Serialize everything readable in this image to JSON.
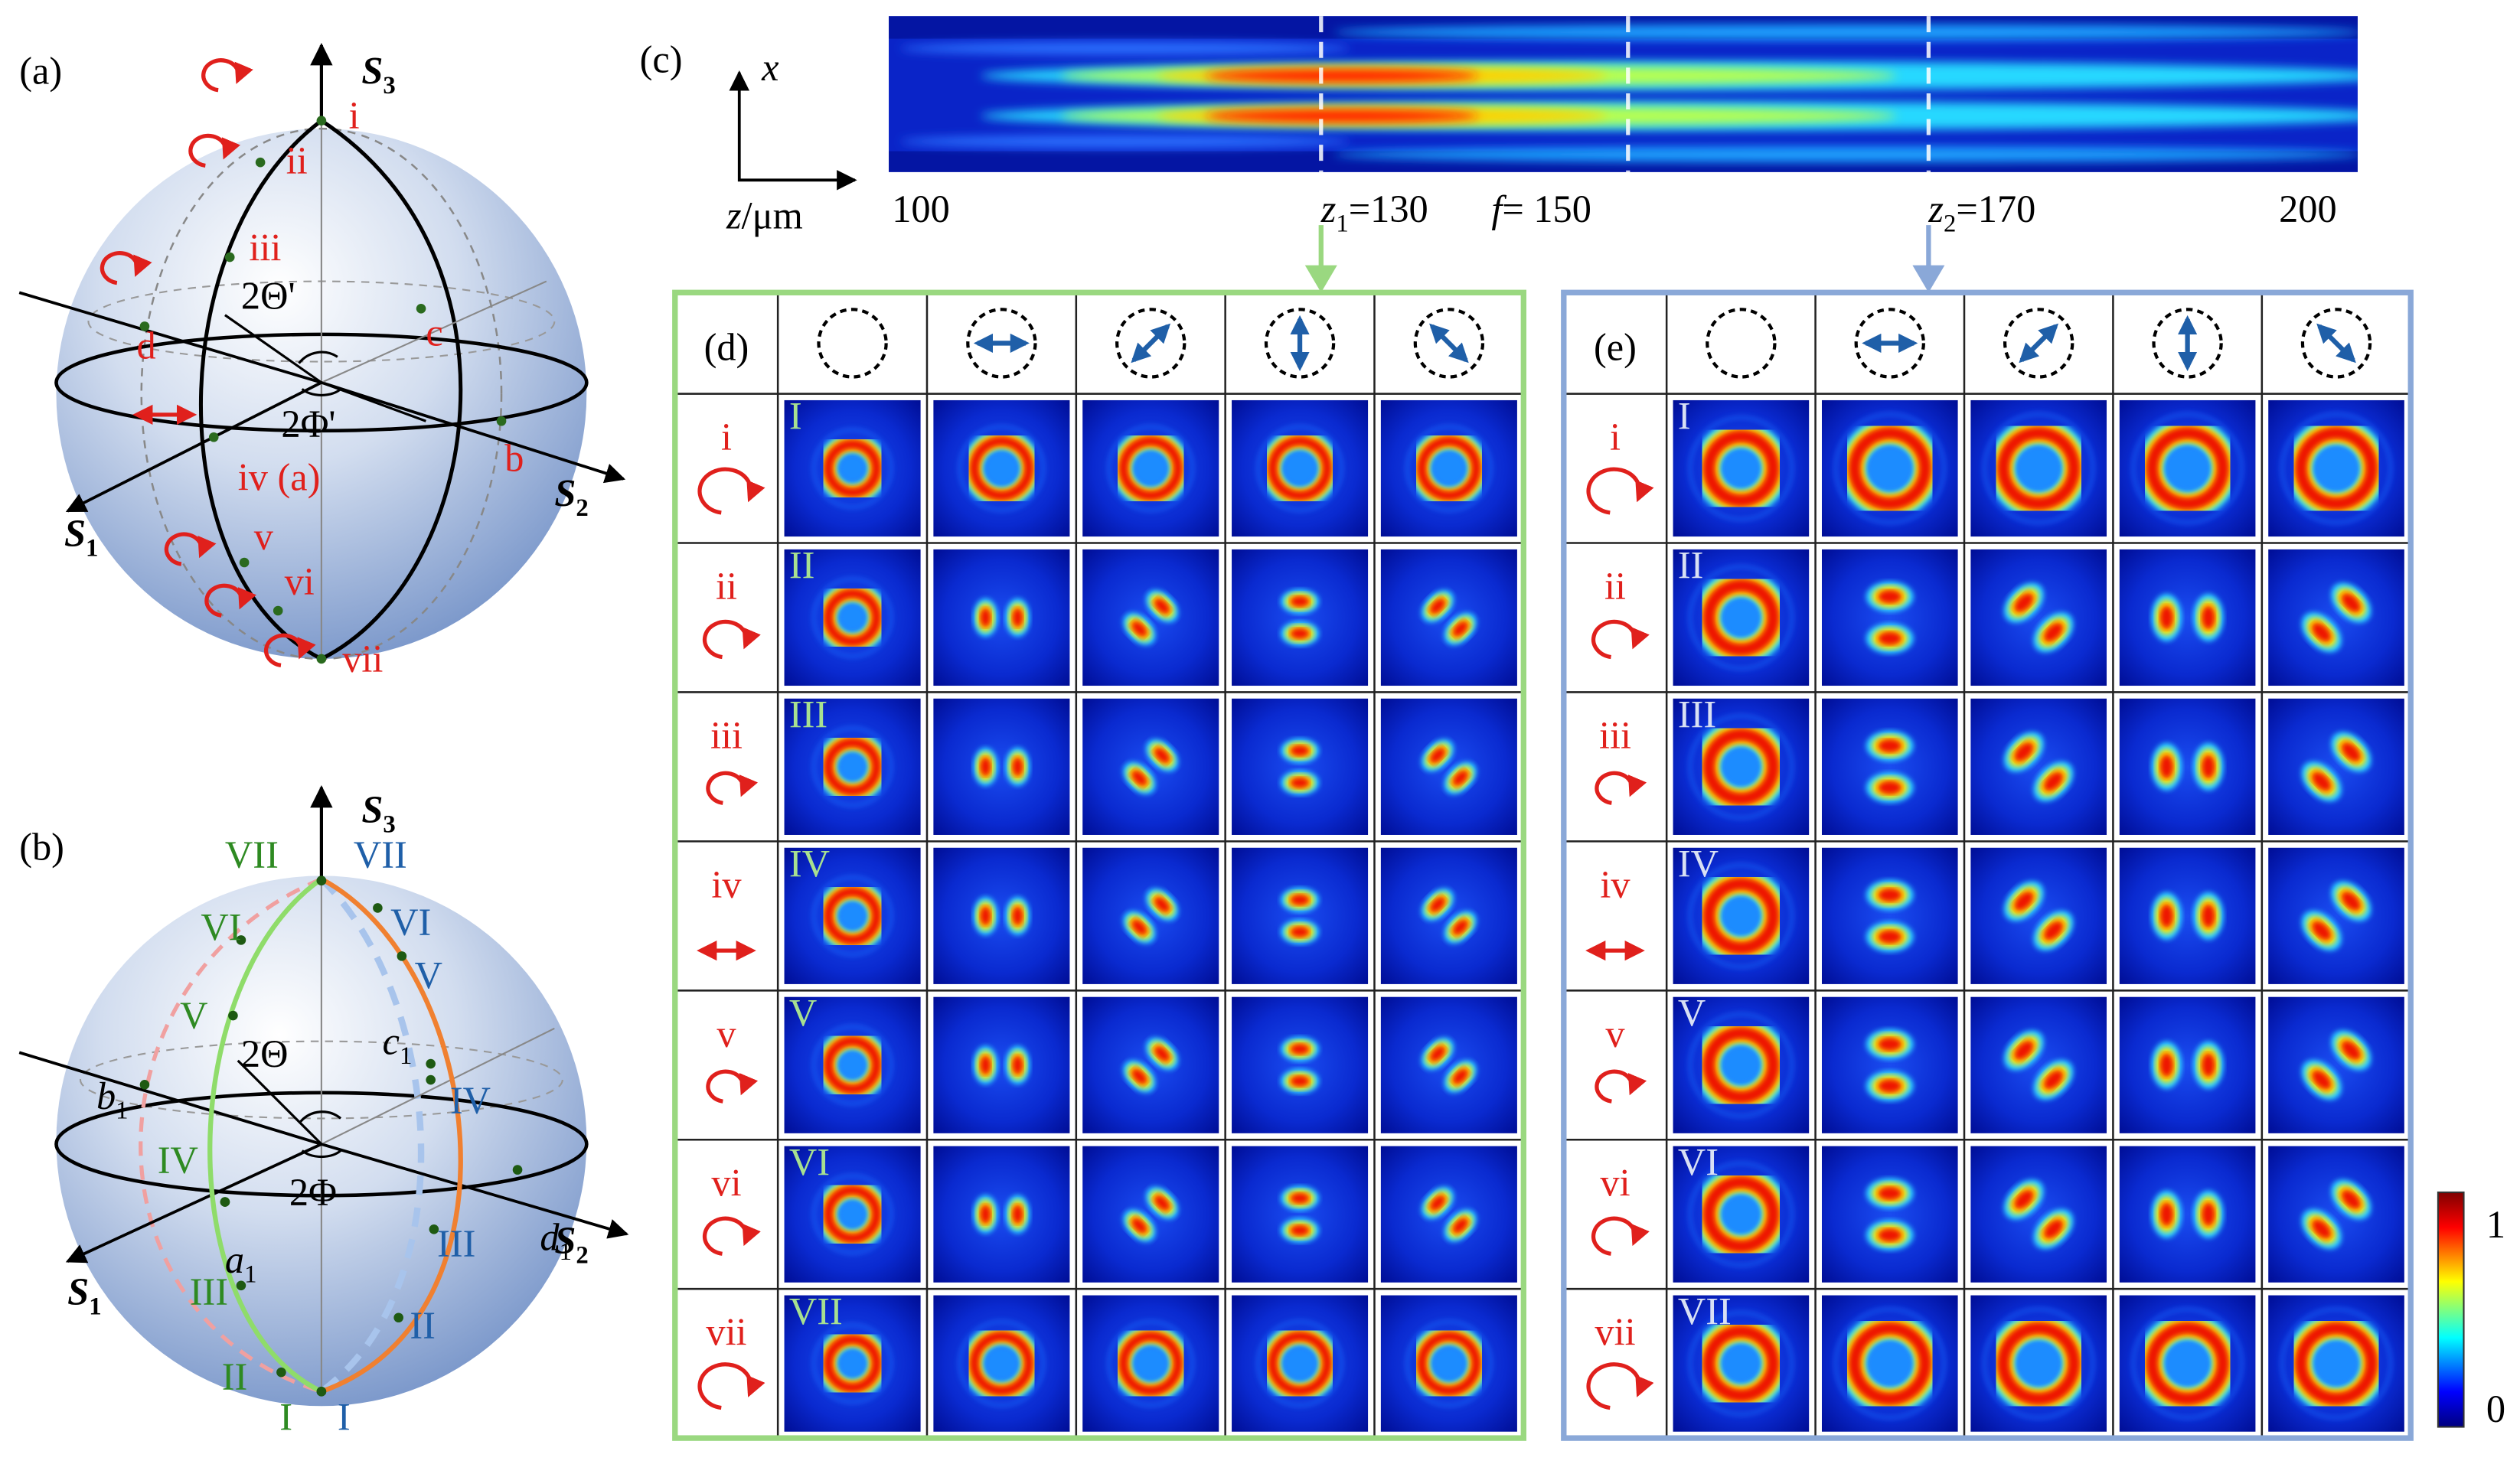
{
  "panel_a": {
    "label": "(a)",
    "axis_labels": [
      {
        "symbol": "S",
        "sub": "3"
      },
      {
        "symbol": "S",
        "sub": "2"
      },
      {
        "symbol": "S",
        "sub": "1"
      }
    ],
    "points": [
      "i",
      "ii",
      "iii",
      "d",
      "c",
      "iv (a)",
      "b",
      "v",
      "vi",
      "vii"
    ],
    "angles": [
      "2Θ'",
      "2Φ'"
    ]
  },
  "panel_b": {
    "label": "(b)",
    "axis_labels": [
      {
        "symbol": "S",
        "sub": "3"
      },
      {
        "symbol": "S",
        "sub": "2"
      },
      {
        "symbol": "S",
        "sub": "1"
      }
    ],
    "green_points": [
      "VII",
      "VI",
      "V",
      "IV",
      "III",
      "II",
      "I"
    ],
    "blue_points": [
      "VII",
      "VI",
      "V",
      "IV",
      "III",
      "II",
      "I"
    ],
    "points": [
      {
        "symbol": "b",
        "sub": "1"
      },
      {
        "symbol": "c",
        "sub": "1"
      },
      {
        "symbol": "a",
        "sub": "1"
      },
      {
        "symbol": "d",
        "sub": "1"
      }
    ],
    "angles": [
      "2Θ",
      "2Φ"
    ]
  },
  "panel_c": {
    "label": "(c)",
    "x_axis": "x",
    "z_axis": {
      "symbol": "z",
      "text": "/μm"
    },
    "ticks": [
      {
        "text": "100"
      },
      {
        "symbol": "z",
        "sub": "1",
        "text": "=130"
      },
      {
        "symbol": "f",
        "text": "= 150"
      },
      {
        "symbol": "z",
        "sub": "2",
        "text": "=170"
      },
      {
        "text": "200"
      }
    ]
  },
  "panel_d": {
    "label": "(d)",
    "rows": [
      {
        "label": "i",
        "roman": "I"
      },
      {
        "label": "ii",
        "roman": "II"
      },
      {
        "label": "iii",
        "roman": "III"
      },
      {
        "label": "iv",
        "roman": "IV"
      },
      {
        "label": "v",
        "roman": "V"
      },
      {
        "label": "vi",
        "roman": "VI"
      },
      {
        "label": "vii",
        "roman": "VII"
      }
    ]
  },
  "panel_e": {
    "label": "(e)",
    "rows": [
      {
        "label": "i",
        "roman": "I"
      },
      {
        "label": "ii",
        "roman": "II"
      },
      {
        "label": "iii",
        "roman": "III"
      },
      {
        "label": "iv",
        "roman": "IV"
      },
      {
        "label": "v",
        "roman": "V"
      },
      {
        "label": "vi",
        "roman": "VI"
      },
      {
        "label": "vii",
        "roman": "VII"
      }
    ]
  },
  "colorbar": {
    "max": 1,
    "min": 0
  }
}
